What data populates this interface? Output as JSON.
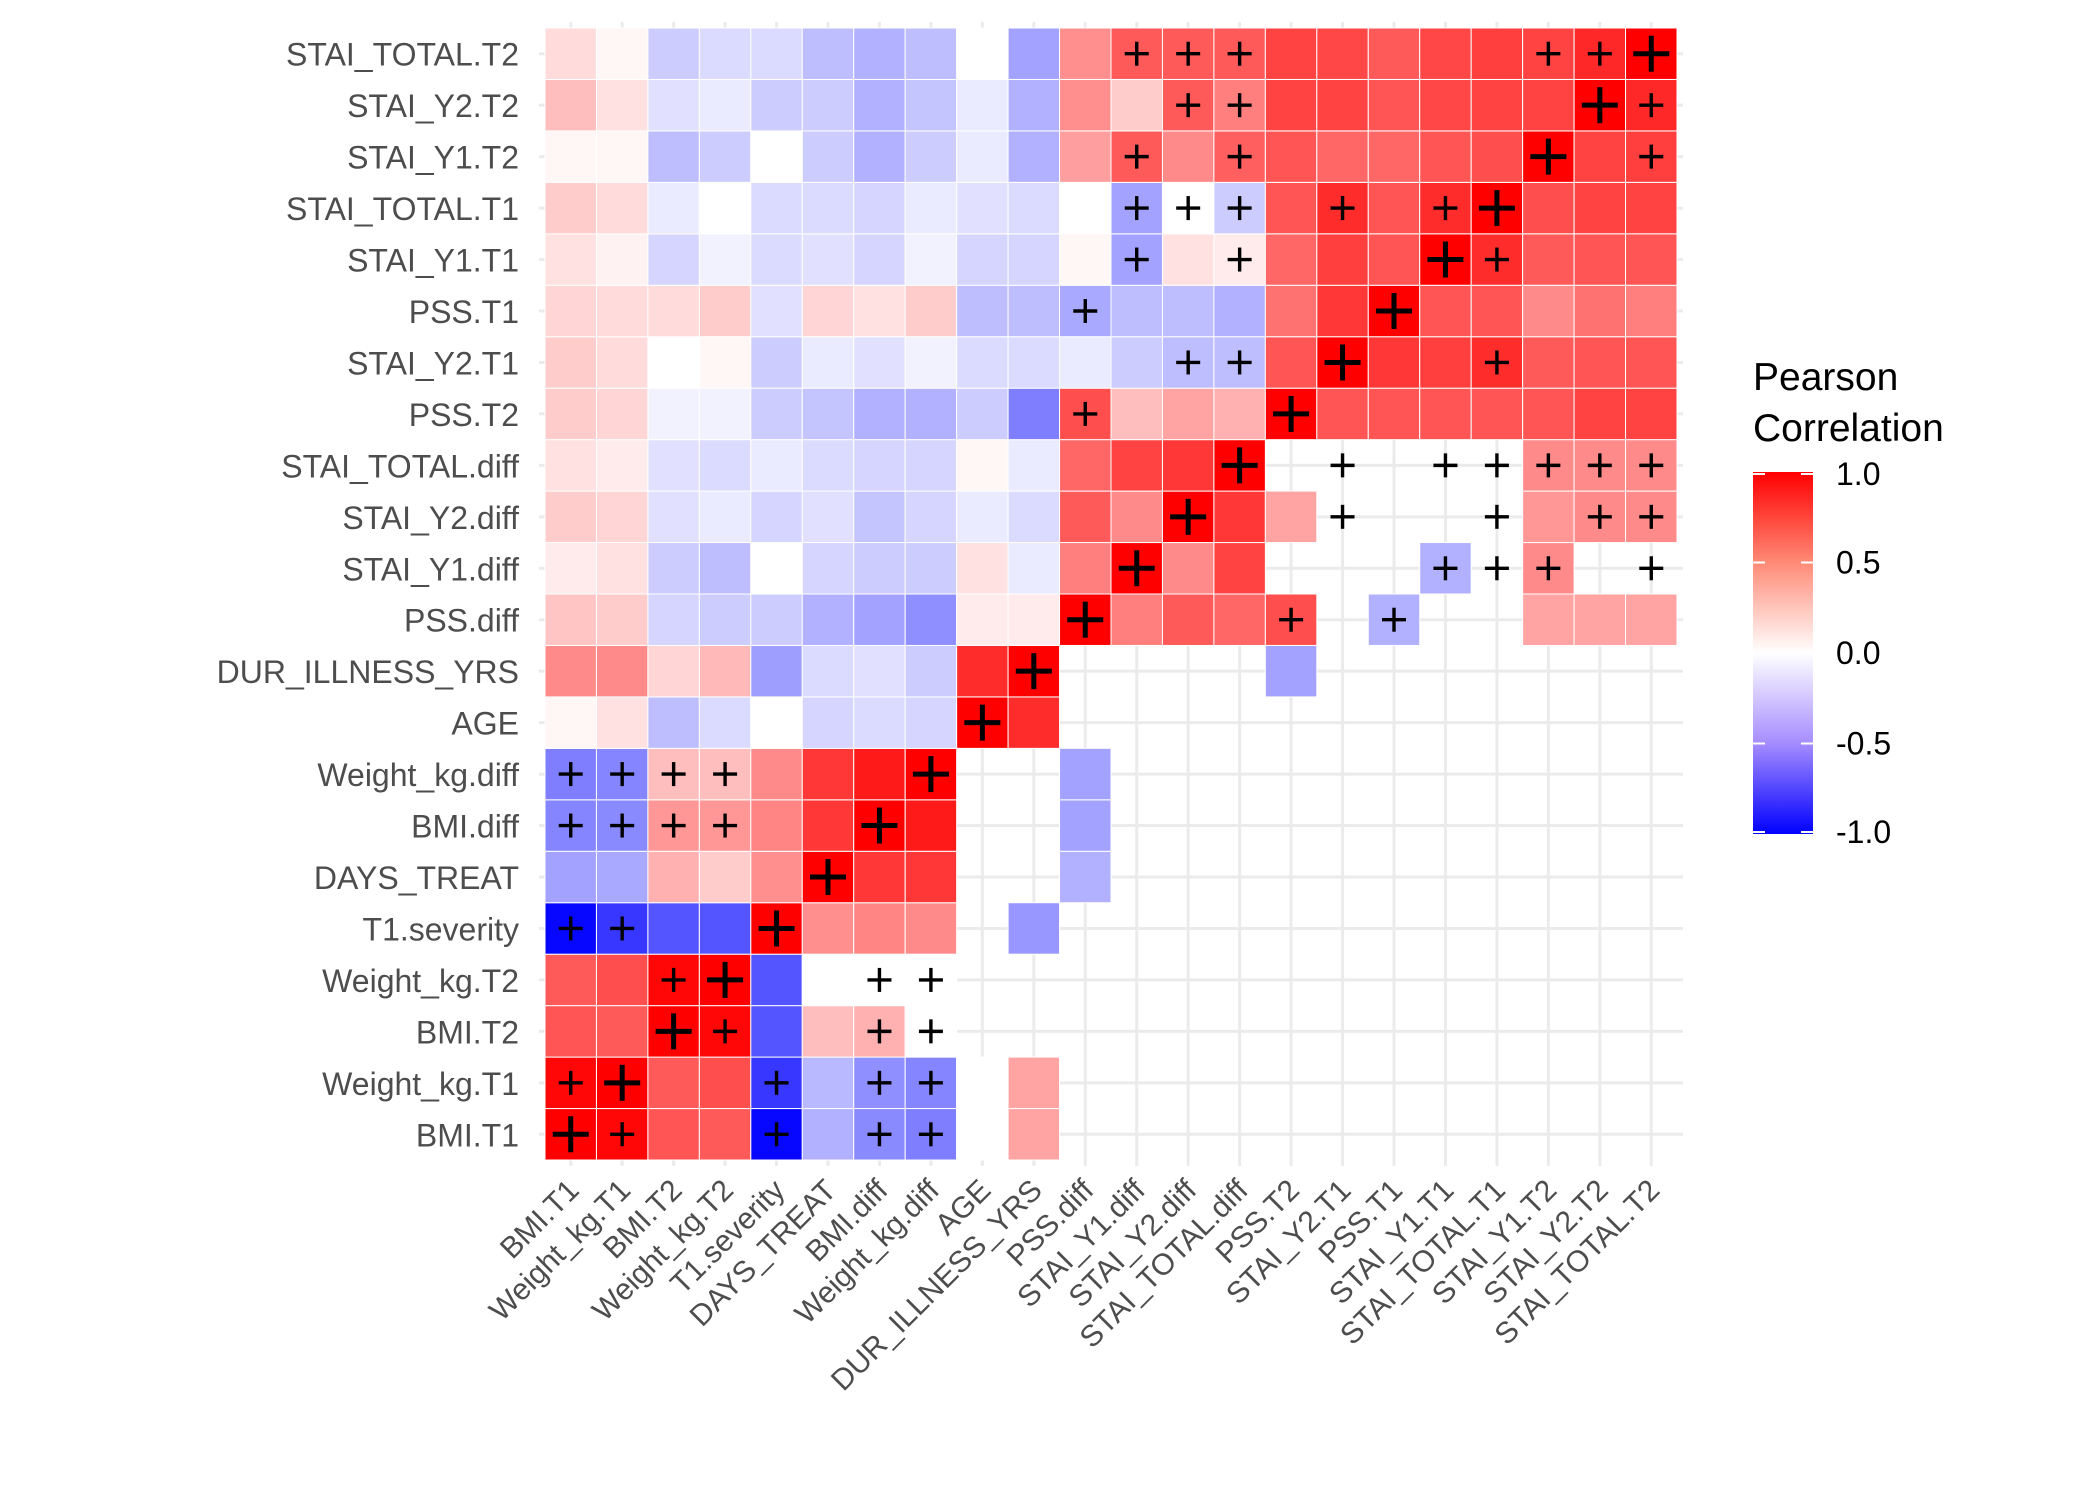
{
  "chart_data": {
    "type": "heatmap",
    "variables": [
      "BMI.T1",
      "Weight_kg.T1",
      "BMI.T2",
      "Weight_kg.T2",
      "T1.severity",
      "DAYS_TREAT",
      "BMI.diff",
      "Weight_kg.diff",
      "AGE",
      "DUR_ILLNESS_YRS",
      "PSS.diff",
      "STAI_Y1.diff",
      "STAI_Y2.diff",
      "STAI_TOTAL.diff",
      "PSS.T2",
      "STAI_Y2.T1",
      "PSS.T1",
      "STAI_Y1.T1",
      "STAI_TOTAL.T1",
      "STAI_Y1.T2",
      "STAI_Y2.T2",
      "STAI_TOTAL.T2"
    ],
    "legend_title": [
      "Pearson",
      "Correlation"
    ],
    "legend_ticks": [
      "1.0",
      "0.5",
      "0.0",
      "-0.5",
      "-1.0"
    ],
    "scale": {
      "min": -1,
      "max": 1,
      "low_color": "#0000ff",
      "mid_color": "#ffffff",
      "high_color": "#ff0000"
    },
    "grid": true,
    "legend_position": "right",
    "matrix": [
      [
        1.0,
        0.97,
        0.62,
        0.6,
        -0.97,
        -0.25,
        -0.4,
        -0.45,
        0.0,
        0.3,
        null,
        null,
        null,
        null,
        null,
        null,
        null,
        null,
        null,
        null,
        null,
        null
      ],
      [
        0.97,
        1.0,
        0.6,
        0.65,
        -0.75,
        -0.22,
        -0.38,
        -0.42,
        0.0,
        0.3,
        null,
        null,
        null,
        null,
        null,
        null,
        null,
        null,
        null,
        null,
        null,
        null
      ],
      [
        0.62,
        0.6,
        1.0,
        0.97,
        -0.62,
        0.2,
        0.25,
        0.0,
        null,
        null,
        null,
        null,
        null,
        null,
        null,
        null,
        null,
        null,
        null,
        null,
        null,
        null
      ],
      [
        0.6,
        0.65,
        0.97,
        1.0,
        -0.62,
        0.0,
        0.0,
        0.0,
        null,
        null,
        null,
        null,
        null,
        null,
        null,
        null,
        null,
        null,
        null,
        null,
        null,
        null
      ],
      [
        -0.97,
        -0.75,
        -0.62,
        -0.62,
        1.0,
        0.38,
        0.42,
        0.4,
        null,
        -0.35,
        null,
        null,
        null,
        null,
        null,
        null,
        null,
        null,
        null,
        null,
        null,
        null
      ],
      [
        -0.3,
        -0.28,
        0.25,
        0.15,
        0.38,
        1.0,
        0.75,
        0.75,
        null,
        null,
        -0.25,
        null,
        null,
        null,
        null,
        null,
        null,
        null,
        null,
        null,
        null,
        null
      ],
      [
        -0.42,
        -0.4,
        0.35,
        0.35,
        0.42,
        0.75,
        1.0,
        0.88,
        null,
        null,
        -0.3,
        null,
        null,
        null,
        null,
        null,
        null,
        null,
        null,
        null,
        null,
        null
      ],
      [
        -0.45,
        -0.42,
        0.2,
        0.2,
        0.4,
        0.75,
        0.88,
        1.0,
        null,
        null,
        -0.3,
        null,
        null,
        null,
        null,
        null,
        null,
        null,
        null,
        null,
        null,
        null
      ],
      [
        0.02,
        0.08,
        -0.2,
        -0.1,
        0.0,
        -0.12,
        -0.1,
        -0.12,
        1.0,
        0.8,
        null,
        null,
        null,
        null,
        null,
        null,
        null,
        null,
        null,
        null,
        null,
        null
      ],
      [
        0.4,
        0.4,
        0.12,
        0.22,
        -0.32,
        -0.1,
        -0.08,
        -0.15,
        0.8,
        1.0,
        null,
        null,
        null,
        null,
        -0.3,
        null,
        null,
        null,
        null,
        null,
        null,
        null
      ],
      [
        0.18,
        0.15,
        -0.12,
        -0.15,
        -0.15,
        -0.25,
        -0.3,
        -0.38,
        0.05,
        0.05,
        1.0,
        0.45,
        0.6,
        0.55,
        0.65,
        null,
        -0.25,
        null,
        null,
        0.3,
        0.3,
        0.3
      ],
      [
        0.05,
        0.08,
        -0.15,
        -0.2,
        0.0,
        -0.12,
        -0.15,
        -0.15,
        0.08,
        -0.05,
        0.45,
        1.0,
        0.4,
        0.7,
        null,
        null,
        null,
        -0.25,
        null,
        0.4,
        null,
        null
      ],
      [
        0.15,
        0.12,
        -0.08,
        -0.05,
        -0.12,
        -0.08,
        -0.18,
        -0.12,
        -0.05,
        -0.1,
        0.6,
        0.4,
        1.0,
        0.75,
        0.3,
        null,
        null,
        null,
        null,
        0.35,
        0.4,
        0.4
      ],
      [
        0.08,
        0.05,
        -0.08,
        -0.1,
        -0.05,
        -0.1,
        -0.12,
        -0.12,
        0.02,
        -0.05,
        0.55,
        0.7,
        0.75,
        1.0,
        null,
        null,
        null,
        null,
        null,
        0.4,
        0.4,
        0.4
      ],
      [
        0.15,
        0.12,
        -0.03,
        -0.03,
        -0.15,
        -0.18,
        -0.25,
        -0.25,
        -0.15,
        -0.45,
        0.65,
        0.2,
        0.3,
        0.25,
        1.0,
        0.62,
        0.62,
        0.62,
        0.62,
        0.62,
        0.7,
        0.7
      ],
      [
        0.15,
        0.1,
        0.0,
        0.02,
        -0.15,
        -0.05,
        -0.08,
        -0.03,
        -0.1,
        -0.1,
        -0.05,
        -0.15,
        -0.2,
        -0.2,
        0.62,
        1.0,
        0.75,
        0.72,
        0.8,
        0.6,
        0.62,
        0.62
      ],
      [
        0.12,
        0.1,
        0.1,
        0.15,
        -0.08,
        0.12,
        0.08,
        0.15,
        -0.2,
        -0.2,
        -0.28,
        -0.2,
        -0.2,
        -0.25,
        0.5,
        0.75,
        1.0,
        0.62,
        0.62,
        0.4,
        0.5,
        0.45
      ],
      [
        0.08,
        0.03,
        -0.12,
        -0.03,
        -0.1,
        -0.08,
        -0.12,
        -0.03,
        -0.12,
        -0.12,
        0.02,
        -0.3,
        0.08,
        0.05,
        0.55,
        0.72,
        0.62,
        1.0,
        0.8,
        0.6,
        0.62,
        0.62
      ],
      [
        0.15,
        0.1,
        -0.05,
        0.0,
        -0.1,
        -0.1,
        -0.12,
        -0.05,
        -0.08,
        -0.1,
        0.0,
        -0.3,
        0.0,
        -0.15,
        0.62,
        0.8,
        0.62,
        0.8,
        1.0,
        0.65,
        0.7,
        0.7
      ],
      [
        0.02,
        0.02,
        -0.2,
        -0.15,
        0.0,
        -0.15,
        -0.25,
        -0.15,
        -0.05,
        -0.25,
        0.32,
        0.6,
        0.4,
        0.58,
        0.62,
        0.55,
        0.55,
        0.62,
        0.65,
        1.0,
        0.7,
        0.72
      ],
      [
        0.2,
        0.08,
        -0.08,
        -0.05,
        -0.15,
        -0.15,
        -0.25,
        -0.18,
        -0.05,
        -0.25,
        0.38,
        0.15,
        0.6,
        0.45,
        0.7,
        0.7,
        0.62,
        0.68,
        0.7,
        0.7,
        1.0,
        0.82
      ],
      [
        0.1,
        0.02,
        -0.15,
        -0.1,
        -0.1,
        -0.2,
        -0.25,
        -0.2,
        0.0,
        -0.3,
        0.38,
        0.6,
        0.6,
        0.6,
        0.7,
        0.68,
        0.6,
        0.68,
        0.72,
        0.7,
        0.82,
        1.0
      ]
    ],
    "markers": [
      [
        0,
        1
      ],
      [
        0,
        6
      ],
      [
        0,
        7
      ],
      [
        0,
        4
      ],
      [
        1,
        0
      ],
      [
        1,
        6
      ],
      [
        1,
        7
      ],
      [
        1,
        4
      ],
      [
        2,
        3
      ],
      [
        2,
        6
      ],
      [
        2,
        7
      ],
      [
        3,
        2
      ],
      [
        3,
        6
      ],
      [
        3,
        7
      ],
      [
        4,
        0
      ],
      [
        4,
        1
      ],
      [
        6,
        0
      ],
      [
        6,
        1
      ],
      [
        6,
        2
      ],
      [
        6,
        3
      ],
      [
        7,
        0
      ],
      [
        7,
        1
      ],
      [
        7,
        2
      ],
      [
        7,
        3
      ],
      [
        10,
        14
      ],
      [
        10,
        16
      ],
      [
        11,
        17
      ],
      [
        11,
        18
      ],
      [
        11,
        19
      ],
      [
        11,
        21
      ],
      [
        12,
        15
      ],
      [
        12,
        18
      ],
      [
        12,
        20
      ],
      [
        12,
        21
      ],
      [
        13,
        15
      ],
      [
        13,
        17
      ],
      [
        13,
        18
      ],
      [
        13,
        19
      ],
      [
        13,
        20
      ],
      [
        13,
        21
      ],
      [
        14,
        10
      ],
      [
        15,
        12
      ],
      [
        15,
        13
      ],
      [
        15,
        18
      ],
      [
        16,
        10
      ],
      [
        17,
        11
      ],
      [
        17,
        13
      ],
      [
        17,
        18
      ],
      [
        18,
        11
      ],
      [
        18,
        12
      ],
      [
        18,
        13
      ],
      [
        18,
        15
      ],
      [
        18,
        17
      ],
      [
        19,
        11
      ],
      [
        19,
        13
      ],
      [
        19,
        21
      ],
      [
        20,
        12
      ],
      [
        20,
        13
      ],
      [
        20,
        21
      ],
      [
        21,
        11
      ],
      [
        21,
        12
      ],
      [
        21,
        13
      ],
      [
        21,
        19
      ],
      [
        21,
        20
      ]
    ]
  }
}
